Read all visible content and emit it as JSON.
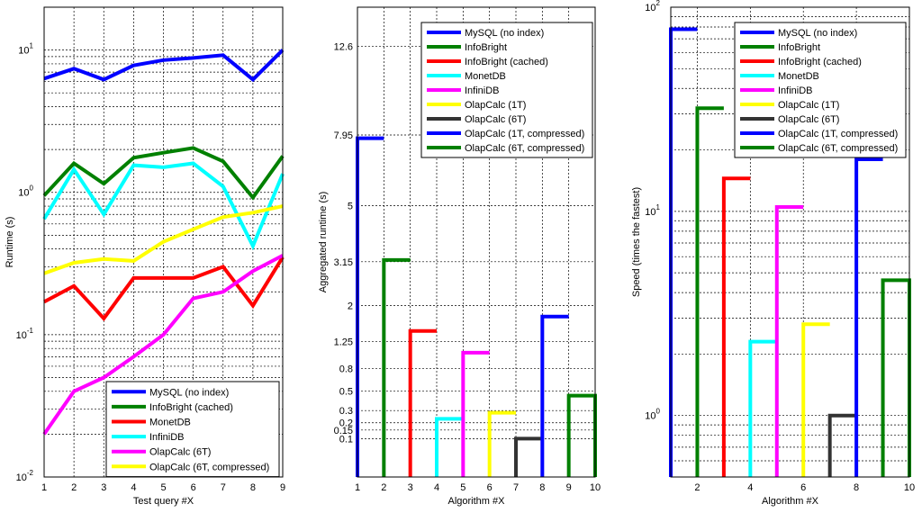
{
  "chart_data": [
    {
      "type": "line",
      "xlabel": "Test query #X",
      "ylabel": "Runtime (s)",
      "yscale": "log",
      "xlim": [
        1,
        9
      ],
      "ylim": [
        0.01,
        20
      ],
      "x_ticks": [
        1,
        2,
        3,
        4,
        5,
        6,
        7,
        8,
        9
      ],
      "y_ticks": [
        {
          "value": 0.01,
          "base": "10",
          "exp": "-2"
        },
        {
          "value": 0.1,
          "base": "10",
          "exp": "-1"
        },
        {
          "value": 1,
          "base": "10",
          "exp": "0"
        },
        {
          "value": 10,
          "base": "10",
          "exp": "1"
        }
      ],
      "grid": true,
      "legend_position": "bottom-right",
      "x": [
        1,
        2,
        3,
        4,
        5,
        6,
        7,
        8,
        9
      ],
      "series": [
        {
          "name": "MySQL (no index)",
          "color": "#0000ff",
          "values": [
            6.3,
            7.4,
            6.2,
            7.8,
            8.5,
            8.8,
            9.2,
            6.2,
            10.0
          ]
        },
        {
          "name": "InfoBright (cached)",
          "color": "#008000",
          "values": [
            0.95,
            1.6,
            1.15,
            1.75,
            1.9,
            2.05,
            1.65,
            0.92,
            1.8
          ]
        },
        {
          "name": "MonetDB",
          "color": "#ff0000",
          "values": [
            0.17,
            0.22,
            0.13,
            0.25,
            0.25,
            0.25,
            0.3,
            0.16,
            0.35
          ]
        },
        {
          "name": "InfiniDB",
          "color": "#00ffff",
          "values": [
            0.65,
            1.45,
            0.7,
            1.55,
            1.5,
            1.6,
            1.1,
            0.42,
            1.35
          ]
        },
        {
          "name": "OlapCalc (6T)",
          "color": "#ff00ff",
          "values": [
            0.02,
            0.04,
            0.05,
            0.07,
            0.1,
            0.18,
            0.2,
            0.28,
            0.36
          ]
        },
        {
          "name": "OlapCalc (6T, compressed)",
          "color": "#ffff00",
          "values": [
            0.27,
            0.32,
            0.34,
            0.33,
            0.45,
            0.55,
            0.67,
            0.72,
            0.8
          ]
        }
      ]
    },
    {
      "type": "bar",
      "style": "step",
      "xlabel": "Algorithm #X",
      "ylabel": "Aggregated runtime (s)",
      "yscale": "sqrt",
      "xlim": [
        1,
        10
      ],
      "ylim": [
        0,
        15
      ],
      "x_ticks": [
        1,
        2,
        3,
        4,
        5,
        6,
        7,
        8,
        9,
        10
      ],
      "y_ticks": [
        0.1,
        0.15,
        0.2,
        0.3,
        0.5,
        0.8,
        1.25,
        2,
        3.15,
        5,
        7.95,
        12.6
      ],
      "y_tick_labels": [
        "0.1",
        "0.15",
        "0.2",
        "0.3",
        "0.5",
        "0.8",
        "1.25",
        "2",
        "3.15",
        "5",
        "7.95",
        "12.6"
      ],
      "grid": true,
      "legend_position": "top-right",
      "series": [
        {
          "name": "MySQL (no index)",
          "color": "#0000ff",
          "x_start": 1,
          "value": 7.8
        },
        {
          "name": "InfoBright",
          "color": "#008000",
          "x_start": 2,
          "value": 3.2
        },
        {
          "name": "InfoBright (cached)",
          "color": "#ff0000",
          "x_start": 3,
          "value": 1.45
        },
        {
          "name": "MonetDB",
          "color": "#00ffff",
          "x_start": 4,
          "value": 0.23
        },
        {
          "name": "InfiniDB",
          "color": "#ff00ff",
          "x_start": 5,
          "value": 1.05
        },
        {
          "name": "OlapCalc (1T)",
          "color": "#ffff00",
          "x_start": 6,
          "value": 0.28
        },
        {
          "name": "OlapCalc (6T)",
          "color": "#333333",
          "x_start": 7,
          "value": 0.1
        },
        {
          "name": "OlapCalc (1T, compressed)",
          "color": "#0000ff",
          "x_start": 8,
          "value": 1.75
        },
        {
          "name": "OlapCalc (6T, compressed)",
          "color": "#008000",
          "x_start": 9,
          "value": 0.45
        }
      ]
    },
    {
      "type": "bar",
      "style": "step",
      "xlabel": "Algorithm #X",
      "ylabel": "Speed (times the fastest)",
      "yscale": "log",
      "xlim": [
        1,
        10
      ],
      "ylim": [
        0.5,
        100
      ],
      "x_ticks": [
        2,
        4,
        6,
        8,
        10
      ],
      "y_ticks": [
        {
          "value": 1,
          "base": "10",
          "exp": "0"
        },
        {
          "value": 10,
          "base": "10",
          "exp": "1"
        },
        {
          "value": 100,
          "base": "10",
          "exp": "2"
        }
      ],
      "grid": true,
      "legend_position": "top-right",
      "series": [
        {
          "name": "MySQL (no index)",
          "color": "#0000ff",
          "x_start": 1,
          "value": 78
        },
        {
          "name": "InfoBright",
          "color": "#008000",
          "x_start": 2,
          "value": 32
        },
        {
          "name": "InfoBright (cached)",
          "color": "#ff0000",
          "x_start": 3,
          "value": 14.5
        },
        {
          "name": "MonetDB",
          "color": "#00ffff",
          "x_start": 4,
          "value": 2.3
        },
        {
          "name": "InfiniDB",
          "color": "#ff00ff",
          "x_start": 5,
          "value": 10.5
        },
        {
          "name": "OlapCalc (1T)",
          "color": "#ffff00",
          "x_start": 6,
          "value": 2.8
        },
        {
          "name": "OlapCalc (6T)",
          "color": "#333333",
          "x_start": 7,
          "value": 1
        },
        {
          "name": "OlapCalc (1T, compressed)",
          "color": "#0000ff",
          "x_start": 8,
          "value": 18
        },
        {
          "name": "OlapCalc (6T, compressed)",
          "color": "#008000",
          "x_start": 9,
          "value": 4.6
        }
      ]
    }
  ]
}
